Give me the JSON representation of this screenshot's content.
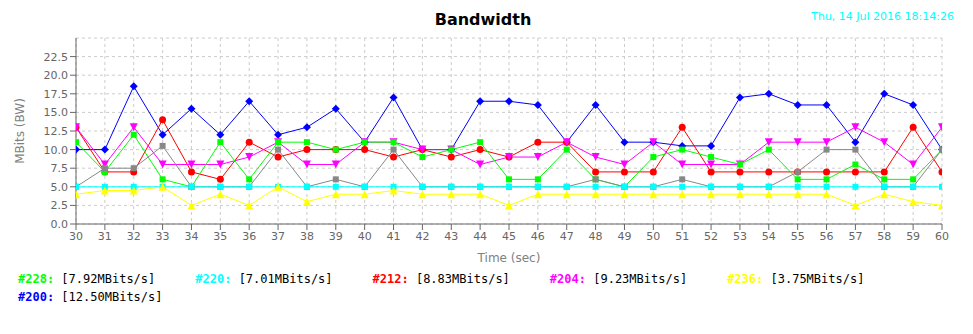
{
  "chart_data": {
    "type": "line",
    "title": "Bandwidth",
    "xlabel": "Time (sec)",
    "ylabel": "MBits (BW)",
    "annotations": [
      {
        "text": "Thu, 14 Jul 2016 18:14:26",
        "color": "#00ffff"
      }
    ],
    "x": [
      30,
      31,
      32,
      33,
      34,
      35,
      36,
      37,
      38,
      39,
      40,
      41,
      42,
      43,
      44,
      45,
      46,
      47,
      48,
      49,
      50,
      51,
      52,
      53,
      54,
      55,
      56,
      57,
      58,
      59,
      60
    ],
    "xlim": [
      30,
      60
    ],
    "xticks": [
      30,
      31,
      32,
      33,
      34,
      35,
      36,
      37,
      38,
      39,
      40,
      41,
      42,
      43,
      44,
      45,
      46,
      47,
      48,
      49,
      50,
      51,
      52,
      53,
      54,
      55,
      56,
      57,
      58,
      59,
      60
    ],
    "ylim": [
      0,
      25
    ],
    "yticks": [
      {
        "value": 0,
        "label": "0.0"
      },
      2.5,
      {
        "value": 5,
        "label": "5.0"
      },
      7.5,
      {
        "value": 10,
        "label": "10.0"
      },
      12.5,
      {
        "value": 15,
        "label": "15.0"
      },
      17.5,
      {
        "value": 20,
        "label": "20.0"
      },
      22.5
    ],
    "grid": true,
    "series": [
      {
        "color": "#0000ff",
        "marker": "diamond",
        "values": [
          10,
          10,
          18.5,
          12,
          15.5,
          12,
          16.5,
          12,
          13,
          15.5,
          11,
          17,
          10,
          10,
          16.5,
          16.5,
          16,
          11,
          16,
          11,
          11,
          10.5,
          10.5,
          17,
          17.5,
          16,
          16,
          11,
          17.5,
          16,
          10
        ]
      },
      {
        "color": "#ff0000",
        "marker": "circle",
        "values": [
          13,
          7,
          7,
          14,
          7,
          6,
          11,
          9,
          10,
          10,
          10,
          9,
          10,
          9,
          10,
          9,
          11,
          11,
          7,
          7,
          7,
          13,
          7,
          7,
          7,
          7,
          7,
          7,
          7,
          13,
          7
        ]
      },
      {
        "color": "#ff00ff",
        "marker": "triangle-down",
        "values": [
          13,
          8,
          13,
          8,
          8,
          8,
          9,
          11,
          8,
          8,
          11,
          11,
          10,
          10,
          8,
          9,
          9,
          11,
          9,
          8,
          11,
          8,
          8,
          8,
          11,
          11,
          11,
          13,
          11,
          8,
          13
        ]
      },
      {
        "color": "#00ff00",
        "marker": "square",
        "values": [
          11,
          7,
          12,
          6,
          5,
          11,
          6,
          11,
          11,
          10,
          11,
          11,
          9,
          10,
          11,
          6,
          6,
          10,
          6,
          5,
          9,
          10,
          9,
          8,
          10,
          6,
          6,
          8,
          6,
          6,
          10
        ]
      },
      {
        "color": "#888888",
        "marker": "square",
        "values": [
          5,
          7.5,
          7.5,
          10.5,
          5,
          5,
          5,
          10,
          5,
          6,
          5,
          10,
          5,
          5,
          5,
          5,
          5,
          5,
          6,
          5,
          5,
          6,
          5,
          5,
          5,
          7,
          10,
          10,
          5,
          5,
          10
        ]
      },
      {
        "color": "#00ffff",
        "marker": "square",
        "values": [
          5,
          5,
          5,
          5,
          5,
          5,
          5,
          5,
          5,
          5,
          5,
          5,
          5,
          5,
          5,
          5,
          5,
          5,
          5,
          5,
          5,
          5,
          5,
          5,
          5,
          5,
          5,
          5,
          5,
          5,
          5
        ]
      },
      {
        "color": "#ffff00",
        "marker": "triangle",
        "values": [
          4,
          4.5,
          4.5,
          5,
          2.5,
          4,
          2.5,
          5,
          3,
          4,
          4,
          4.5,
          4,
          4,
          4,
          2.5,
          4,
          4,
          4,
          4,
          4,
          4,
          4,
          4,
          4,
          4,
          4,
          2.5,
          4,
          3,
          2.5
        ]
      }
    ],
    "legend_items": [
      {
        "text": "#228:",
        "color": "#00ff00",
        "value": "[7.92MBits/s]"
      },
      {
        "text": "#220:",
        "color": "#00ffff",
        "value": "[7.01MBits/s]"
      },
      {
        "text": "#212:",
        "color": "#ff0000",
        "value": "[8.83MBits/s]"
      },
      {
        "text": "#204:",
        "color": "#ff00ff",
        "value": "[9.23MBits/s]"
      },
      {
        "text": "#236:",
        "color": "#ffff00",
        "value": "[3.75MBits/s]"
      },
      {
        "text": "#200:",
        "color": "#0000ff",
        "value": "[12.50MBits/s]"
      }
    ]
  }
}
